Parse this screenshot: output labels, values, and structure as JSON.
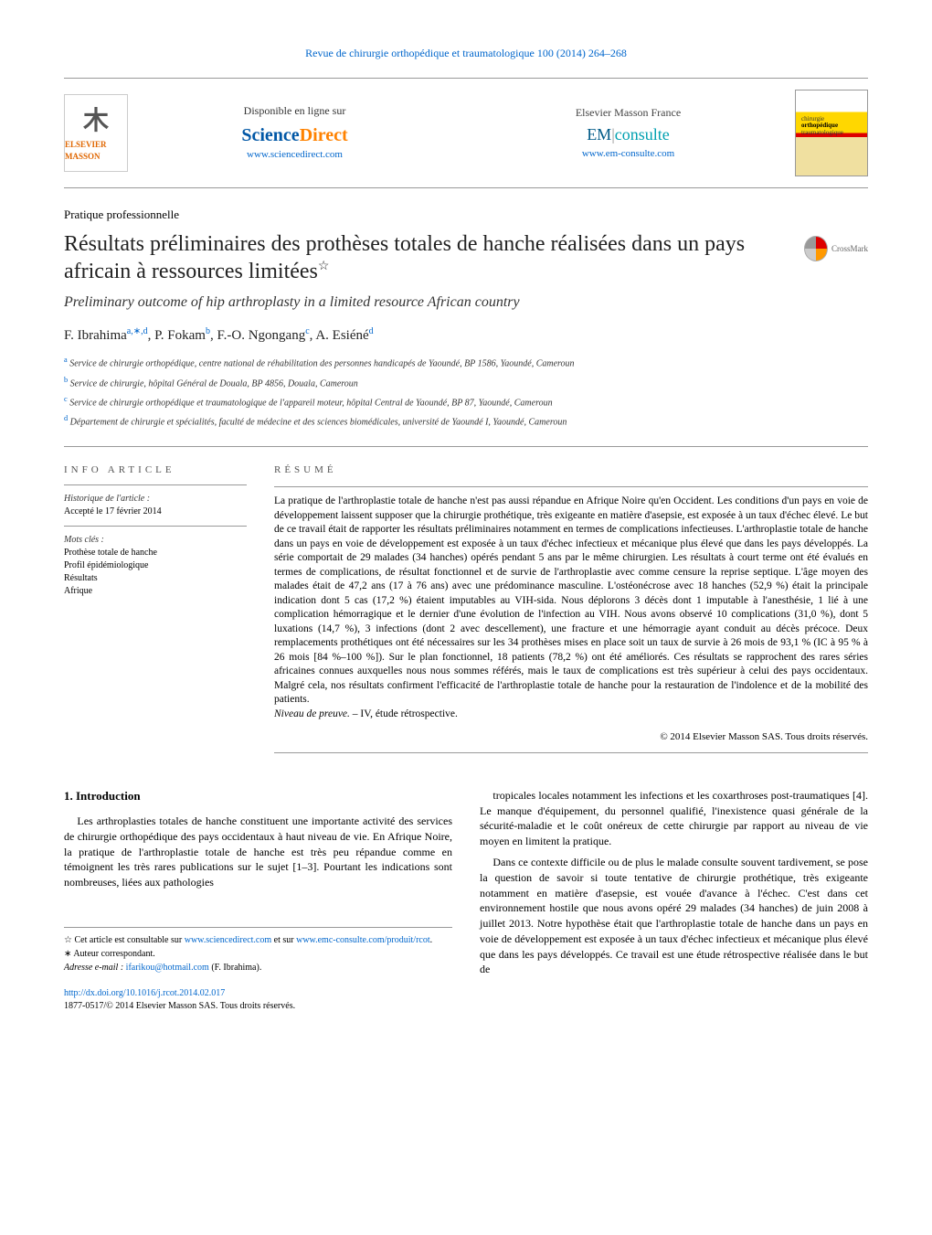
{
  "journal_header": "Revue de chirurgie orthopédique et traumatologique 100 (2014) 264–268",
  "top": {
    "publisher_name": "ELSEVIER MASSON",
    "online_label": "Disponible en ligne sur",
    "sciencedirect_science": "Science",
    "sciencedirect_direct": "Direct",
    "sciencedirect_url": "www.sciencedirect.com",
    "elsevier_france_label": "Elsevier Masson France",
    "em": "EM",
    "consulte": "consulte",
    "em_url": "www.em-consulte.com",
    "cover_line1": "chirurgie",
    "cover_line2": "orthopédique",
    "cover_line3": "traumatologique"
  },
  "section_label": "Pratique professionnelle",
  "title": "Résultats préliminaires des prothèses totales de hanche réalisées dans un pays africain à ressources limitées",
  "title_star": "☆",
  "subtitle": "Preliminary outcome of hip arthroplasty in a limited resource African country",
  "crossmark_label": "CrossMark",
  "authors": {
    "a1": {
      "name": "F. Ibrahima",
      "sup": "a,∗,d"
    },
    "a2": {
      "name": "P. Fokam",
      "sup": "b"
    },
    "a3": {
      "name": "F.-O. Ngongang",
      "sup": "c"
    },
    "a4": {
      "name": "A. Esiéné",
      "sup": "d"
    }
  },
  "affiliations": {
    "a": "Service de chirurgie orthopédique, centre national de réhabilitation des personnes handicapés de Yaoundé, BP 1586, Yaoundé, Cameroun",
    "b": "Service de chirurgie, hôpital Général de Douala, BP 4856, Douala, Cameroun",
    "c": "Service de chirurgie orthopédique et traumatologique de l'appareil moteur, hôpital Central de Yaoundé, BP 87, Yaoundé, Cameroun",
    "d": "Département de chirurgie et spécialités, faculté de médecine et des sciences biomédicales, université de Yaoundé I, Yaoundé, Cameroun"
  },
  "info": {
    "header": "info article",
    "history_label": "Historique de l'article :",
    "history_value": "Accepté le 17 février 2014",
    "keywords_label": "Mots clés :",
    "keywords": [
      "Prothèse totale de hanche",
      "Profil épidémiologique",
      "Résultats",
      "Afrique"
    ]
  },
  "resume": {
    "header": "résumé",
    "body": "La pratique de l'arthroplastie totale de hanche n'est pas aussi répandue en Afrique Noire qu'en Occident. Les conditions d'un pays en voie de développement laissent supposer que la chirurgie prothétique, très exigeante en matière d'asepsie, est exposée à un taux d'échec élevé. Le but de ce travail était de rapporter les résultats préliminaires notamment en termes de complications infectieuses. L'arthroplastie totale de hanche dans un pays en voie de développement est exposée à un taux d'échec infectieux et mécanique plus élevé que dans les pays développés. La série comportait de 29 malades (34 hanches) opérés pendant 5 ans par le même chirurgien. Les résultats à court terme ont été évalués en termes de complications, de résultat fonctionnel et de survie de l'arthroplastie avec comme censure la reprise septique. L'âge moyen des malades était de 47,2 ans (17 à 76 ans) avec une prédominance masculine. L'ostéonécrose avec 18 hanches (52,9 %) était la principale indication dont 5 cas (17,2 %) étaient imputables au VIH-sida. Nous déplorons 3 décès dont 1 imputable à l'anesthésie, 1 lié à une complication hémorragique et le dernier d'une évolution de l'infection au VIH. Nous avons observé 10 complications (31,0 %), dont 5 luxations (14,7 %), 3 infections (dont 2 avec descellement), une fracture et une hémorragie ayant conduit au décès précoce. Deux remplacements prothétiques ont été nécessaires sur les 34 prothèses mises en place soit un taux de survie à 26 mois de 93,1 % (IC à 95 % à 26 mois [84 %–100 %]). Sur le plan fonctionnel, 18 patients (78,2 %) ont été améliorés. Ces résultats se rapprochent des rares séries africaines connues auxquelles nous nous sommes référés, mais le taux de complications est très supérieur à celui des pays occidentaux. Malgré cela, nos résultats confirment l'efficacité de l'arthroplastie totale de hanche pour la restauration de l'indolence et de la mobilité des patients.",
    "niveau_label": "Niveau de preuve. – ",
    "niveau_value": "IV, étude rétrospective.",
    "copyright": "© 2014 Elsevier Masson SAS. Tous droits réservés."
  },
  "body": {
    "heading": "1. Introduction",
    "col1_p1": "Les arthroplasties totales de hanche constituent une importante activité des services de chirurgie orthopédique des pays occidentaux à haut niveau de vie. En Afrique Noire, la pratique de l'arthroplastie totale de hanche est très peu répandue comme en témoignent les très rares publications sur le sujet [1–3]. Pourtant les indications sont nombreuses, liées aux pathologies",
    "col2_p1": "tropicales locales notamment les infections et les coxarthroses post-traumatiques [4]. Le manque d'équipement, du personnel qualifié, l'inexistence quasi générale de la sécurité-maladie et le coût onéreux de cette chirurgie par rapport au niveau de vie moyen en limitent la pratique.",
    "col2_p2": "Dans ce contexte difficile ou de plus le malade consulte souvent tardivement, se pose la question de savoir si toute tentative de chirurgie prothétique, très exigeante notamment en matière d'asepsie, est vouée d'avance à l'échec. C'est dans cet environnement hostile que nous avons opéré 29 malades (34 hanches) de juin 2008 à juillet 2013. Notre hypothèse était que l'arthroplastie totale de hanche dans un pays en voie de développement est exposée à un taux d'échec infectieux et mécanique plus élevé que dans les pays développés. Ce travail est une étude rétrospective réalisée dans le but de"
  },
  "footnotes": {
    "note_star_prefix": "☆ Cet article est consultable sur ",
    "note_star_url1": "www.sciencedirect.com",
    "note_star_mid": " et sur ",
    "note_star_url2": "www.emc-consulte.com/produit/rcot",
    "note_star_suffix": ".",
    "corresponding": "∗ Auteur correspondant.",
    "email_label": "Adresse e-mail : ",
    "email": "ifarikou@hotmail.com",
    "email_author": " (F. Ibrahima)."
  },
  "doi": {
    "url": "http://dx.doi.org/10.1016/j.rcot.2014.02.017",
    "issn_line": "1877-0517/© 2014 Elsevier Masson SAS. Tous droits réservés."
  },
  "colors": {
    "link": "#0066cc",
    "text": "#000000",
    "muted": "#555555",
    "orange": "#ff8200",
    "sd_blue": "#0057a6",
    "em_teal": "#00a0b0"
  }
}
